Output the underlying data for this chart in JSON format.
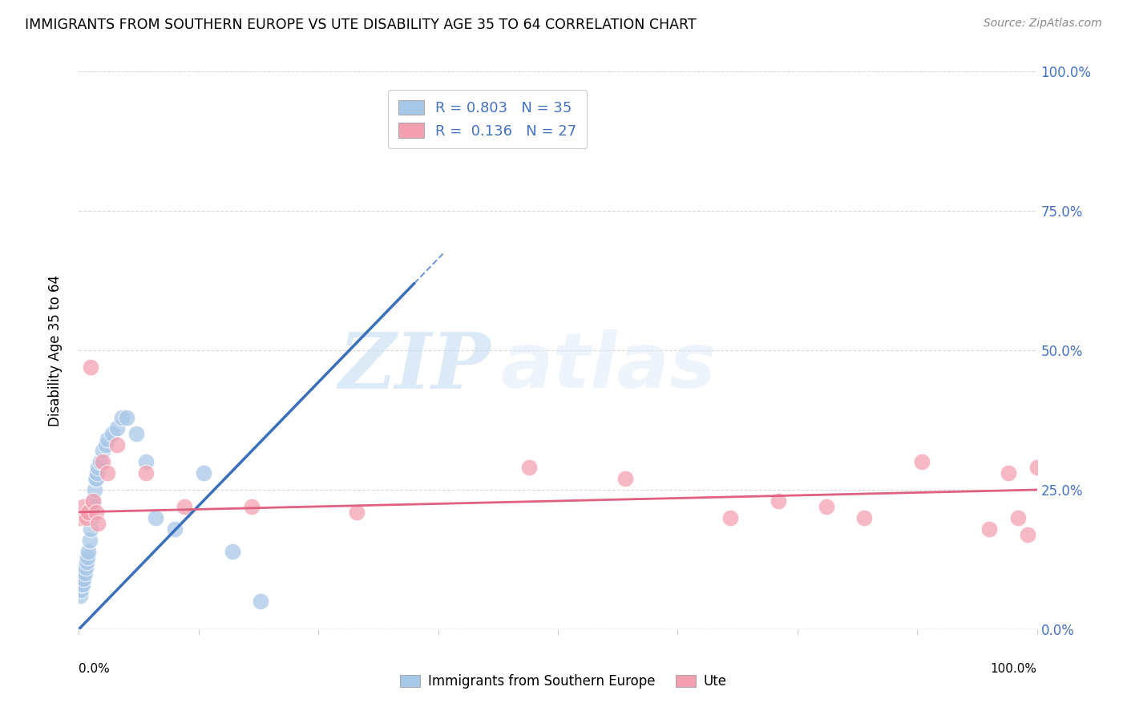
{
  "title": "IMMIGRANTS FROM SOUTHERN EUROPE VS UTE DISABILITY AGE 35 TO 64 CORRELATION CHART",
  "source": "Source: ZipAtlas.com",
  "ylabel": "Disability Age 35 to 64",
  "ytick_labels": [
    "0.0%",
    "25.0%",
    "50.0%",
    "75.0%",
    "100.0%"
  ],
  "ytick_positions": [
    0,
    25,
    50,
    75,
    100
  ],
  "blue_R": 0.803,
  "blue_N": 35,
  "pink_R": 0.136,
  "pink_N": 27,
  "blue_color": "#a8c8e8",
  "blue_line_color": "#3a6fbd",
  "pink_color": "#f4a0b0",
  "pink_line_color": "#e06080",
  "blue_scatter_x": [
    0.1,
    0.2,
    0.3,
    0.4,
    0.5,
    0.6,
    0.7,
    0.8,
    0.9,
    1.0,
    1.1,
    1.2,
    1.3,
    1.4,
    1.5,
    1.6,
    1.7,
    1.8,
    1.9,
    2.0,
    2.2,
    2.5,
    2.8,
    3.0,
    3.5,
    4.0,
    4.5,
    5.0,
    6.0,
    7.0,
    8.0,
    10.0,
    13.0,
    16.0,
    19.0
  ],
  "blue_scatter_y": [
    6,
    7,
    8,
    8,
    9,
    10,
    11,
    12,
    13,
    14,
    16,
    18,
    20,
    22,
    23,
    25,
    27,
    27,
    28,
    29,
    30,
    32,
    33,
    34,
    35,
    36,
    38,
    38,
    35,
    30,
    20,
    18,
    28,
    14,
    5
  ],
  "pink_scatter_x": [
    0.2,
    0.5,
    0.8,
    1.0,
    1.2,
    1.5,
    1.8,
    2.0,
    2.5,
    3.0,
    4.0,
    7.0,
    11.0,
    18.0,
    29.0,
    47.0,
    57.0,
    68.0,
    73.0,
    78.0,
    82.0,
    88.0,
    95.0,
    97.0,
    98.0,
    99.0,
    100.0
  ],
  "pink_scatter_y": [
    20,
    22,
    20,
    21,
    47,
    23,
    21,
    19,
    30,
    28,
    33,
    28,
    22,
    22,
    21,
    29,
    27,
    20,
    23,
    22,
    20,
    30,
    18,
    28,
    20,
    17,
    29
  ],
  "blue_line_x_start": 0,
  "blue_line_x_end": 35,
  "blue_line_y_start": 0,
  "blue_line_y_end": 62,
  "pink_line_x_start": 0,
  "pink_line_x_end": 100,
  "pink_line_y_start": 21,
  "pink_line_y_end": 25,
  "watermark_zip": "ZIP",
  "watermark_atlas": "atlas",
  "legend_label_blue": "Immigrants from Southern Europe",
  "legend_label_pink": "Ute",
  "xlim": [
    0,
    100
  ],
  "ylim": [
    0,
    100
  ],
  "background_color": "#ffffff",
  "grid_color": "#d0d0d0"
}
